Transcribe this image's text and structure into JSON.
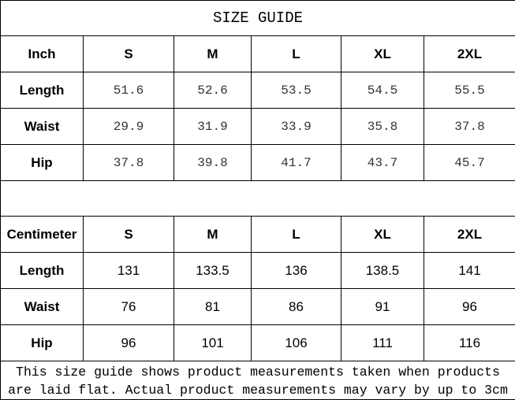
{
  "title": "SIZE GUIDE",
  "sizes": [
    "S",
    "M",
    "L",
    "XL",
    "2XL"
  ],
  "inch": {
    "unit_label": "Inch",
    "rows": [
      {
        "label": "Length",
        "values": [
          "51.6",
          "52.6",
          "53.5",
          "54.5",
          "55.5"
        ]
      },
      {
        "label": "Waist",
        "values": [
          "29.9",
          "31.9",
          "33.9",
          "35.8",
          "37.8"
        ]
      },
      {
        "label": "Hip",
        "values": [
          "37.8",
          "39.8",
          "41.7",
          "43.7",
          "45.7"
        ]
      }
    ]
  },
  "cm": {
    "unit_label": "Centimeter",
    "rows": [
      {
        "label": "Length",
        "values": [
          "131",
          "133.5",
          "136",
          "138.5",
          "141"
        ]
      },
      {
        "label": "Waist",
        "values": [
          "76",
          "81",
          "86",
          "91",
          "96"
        ]
      },
      {
        "label": "Hip",
        "values": [
          "96",
          "101",
          "106",
          "111",
          "116"
        ]
      }
    ]
  },
  "note": "This size guide shows product measurements taken when products are laid flat. Actual product measurements may vary by up to 3cm"
}
